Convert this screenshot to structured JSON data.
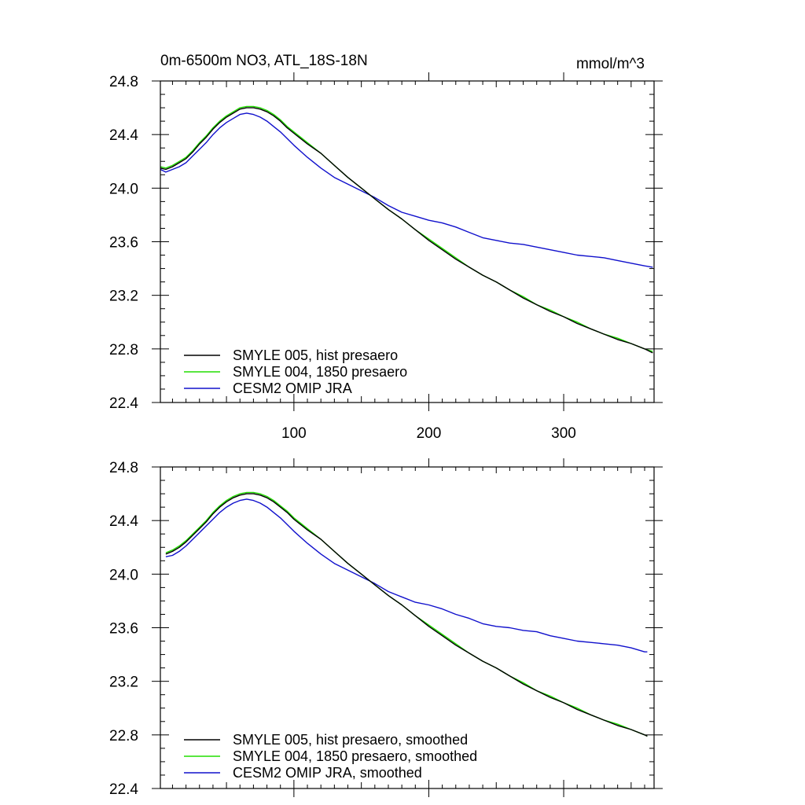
{
  "chart_data": [
    {
      "type": "line",
      "title": "0m-6500m NO3, ATL_18S-18N",
      "units": "mmol/m^3",
      "xlim": [
        1,
        367
      ],
      "ylim": [
        22.4,
        24.8
      ],
      "xticks": [
        100,
        200,
        300
      ],
      "yticks": [
        22.4,
        22.8,
        23.2,
        23.6,
        24.0,
        24.4,
        24.8
      ],
      "ytick_labels": [
        "22.4",
        "22.8",
        "23.2",
        "23.6",
        "24.0",
        "24.4",
        "24.8"
      ],
      "show_xtick_labels": true,
      "legend_position": "bottom-left",
      "grid": false,
      "series": [
        {
          "name": "SMYLE 005, hist presaero",
          "color": "#000000",
          "x": [
            1,
            5,
            10,
            15,
            20,
            25,
            30,
            35,
            40,
            45,
            50,
            55,
            60,
            65,
            70,
            75,
            80,
            85,
            90,
            95,
            100,
            110,
            120,
            130,
            140,
            150,
            160,
            170,
            180,
            190,
            200,
            210,
            220,
            230,
            240,
            250,
            260,
            270,
            280,
            290,
            300,
            310,
            320,
            330,
            340,
            350,
            360,
            366
          ],
          "y": [
            24.15,
            24.14,
            24.16,
            24.19,
            24.22,
            24.27,
            24.33,
            24.38,
            24.44,
            24.49,
            24.53,
            24.56,
            24.59,
            24.6,
            24.6,
            24.59,
            24.57,
            24.54,
            24.5,
            24.45,
            24.41,
            24.33,
            24.26,
            24.17,
            24.08,
            24.0,
            23.92,
            23.84,
            23.77,
            23.69,
            23.61,
            23.54,
            23.47,
            23.41,
            23.35,
            23.3,
            23.24,
            23.18,
            23.13,
            23.08,
            23.04,
            22.99,
            22.95,
            22.91,
            22.87,
            22.84,
            22.8,
            22.77
          ]
        },
        {
          "name": "SMYLE 004, 1850 presaero",
          "color": "#22dd00",
          "x": [
            1,
            5,
            10,
            15,
            20,
            25,
            30,
            35,
            40,
            45,
            50,
            55,
            60,
            65,
            70,
            75,
            80,
            85,
            90,
            95,
            100,
            110,
            120,
            130,
            140,
            150,
            160,
            170,
            180,
            190,
            200,
            210,
            220,
            230,
            240,
            250,
            260,
            270,
            280,
            290,
            300,
            310,
            320,
            330,
            340,
            350,
            360,
            366
          ],
          "y": [
            24.16,
            24.15,
            24.17,
            24.2,
            24.23,
            24.28,
            24.34,
            24.39,
            24.45,
            24.5,
            24.54,
            24.57,
            24.6,
            24.61,
            24.61,
            24.6,
            24.58,
            24.55,
            24.51,
            24.46,
            24.42,
            24.34,
            24.26,
            24.17,
            24.08,
            24.0,
            23.92,
            23.84,
            23.77,
            23.69,
            23.62,
            23.55,
            23.48,
            23.41,
            23.35,
            23.3,
            23.24,
            23.19,
            23.13,
            23.09,
            23.04,
            23.0,
            22.95,
            22.91,
            22.88,
            22.84,
            22.8,
            22.78
          ]
        },
        {
          "name": "CESM2 OMIP JRA",
          "color": "#1010cc",
          "x": [
            1,
            5,
            10,
            15,
            20,
            25,
            30,
            35,
            40,
            45,
            50,
            55,
            60,
            65,
            70,
            75,
            80,
            85,
            90,
            95,
            100,
            110,
            120,
            130,
            140,
            150,
            160,
            170,
            180,
            190,
            200,
            210,
            220,
            230,
            240,
            250,
            260,
            270,
            280,
            290,
            300,
            310,
            320,
            330,
            340,
            350,
            360,
            366
          ],
          "y": [
            24.14,
            24.12,
            24.14,
            24.16,
            24.19,
            24.24,
            24.29,
            24.34,
            24.4,
            24.45,
            24.49,
            24.52,
            24.55,
            24.56,
            24.55,
            24.53,
            24.5,
            24.46,
            24.42,
            24.37,
            24.32,
            24.23,
            24.15,
            24.08,
            24.03,
            23.98,
            23.93,
            23.87,
            23.82,
            23.79,
            23.76,
            23.74,
            23.71,
            23.67,
            23.63,
            23.61,
            23.59,
            23.58,
            23.56,
            23.54,
            23.52,
            23.5,
            23.49,
            23.48,
            23.46,
            23.44,
            23.42,
            23.41
          ]
        }
      ]
    },
    {
      "type": "line",
      "title": "",
      "units": "",
      "xlim": [
        1,
        367
      ],
      "ylim": [
        22.4,
        24.8
      ],
      "xticks": [
        100,
        200,
        300
      ],
      "yticks": [
        22.4,
        22.8,
        23.2,
        23.6,
        24.0,
        24.4,
        24.8
      ],
      "ytick_labels": [
        "22.4",
        "22.8",
        "23.2",
        "23.6",
        "24.0",
        "24.4",
        "24.8"
      ],
      "show_xtick_labels": false,
      "legend_position": "bottom-left",
      "grid": false,
      "series": [
        {
          "name": "SMYLE 005, hist presaero, smoothed",
          "color": "#000000",
          "x": [
            5,
            10,
            15,
            20,
            25,
            30,
            35,
            40,
            45,
            50,
            55,
            60,
            65,
            70,
            75,
            80,
            85,
            90,
            95,
            100,
            110,
            120,
            130,
            140,
            150,
            160,
            170,
            180,
            190,
            200,
            210,
            220,
            230,
            240,
            250,
            260,
            270,
            280,
            290,
            300,
            310,
            320,
            330,
            340,
            350,
            360,
            362
          ],
          "y": [
            24.15,
            24.17,
            24.2,
            24.24,
            24.29,
            24.34,
            24.39,
            24.45,
            24.5,
            24.54,
            24.57,
            24.59,
            24.6,
            24.6,
            24.59,
            24.57,
            24.54,
            24.5,
            24.46,
            24.41,
            24.33,
            24.26,
            24.17,
            24.08,
            24.0,
            23.92,
            23.84,
            23.77,
            23.69,
            23.61,
            23.54,
            23.47,
            23.41,
            23.35,
            23.3,
            23.24,
            23.18,
            23.13,
            23.08,
            23.04,
            22.99,
            22.95,
            22.91,
            22.87,
            22.84,
            22.8,
            22.79
          ]
        },
        {
          "name": "SMYLE 004, 1850 presaero, smoothed",
          "color": "#22dd00",
          "x": [
            5,
            10,
            15,
            20,
            25,
            30,
            35,
            40,
            45,
            50,
            55,
            60,
            65,
            70,
            75,
            80,
            85,
            90,
            95,
            100,
            110,
            120,
            130,
            140,
            150,
            160,
            170,
            180,
            190,
            200,
            210,
            220,
            230,
            240,
            250,
            260,
            270,
            280,
            290,
            300,
            310,
            320,
            330,
            340,
            350,
            360,
            362
          ],
          "y": [
            24.16,
            24.18,
            24.21,
            24.25,
            24.3,
            24.35,
            24.4,
            24.46,
            24.51,
            24.55,
            24.58,
            24.6,
            24.61,
            24.61,
            24.6,
            24.58,
            24.55,
            24.51,
            24.47,
            24.42,
            24.34,
            24.26,
            24.17,
            24.08,
            24.0,
            23.92,
            23.84,
            23.77,
            23.69,
            23.62,
            23.55,
            23.48,
            23.41,
            23.35,
            23.3,
            23.24,
            23.19,
            23.13,
            23.09,
            23.04,
            23.0,
            22.95,
            22.91,
            22.88,
            22.84,
            22.8,
            22.79
          ]
        },
        {
          "name": "CESM2 OMIP JRA, smoothed",
          "color": "#1010cc",
          "x": [
            5,
            10,
            15,
            20,
            25,
            30,
            35,
            40,
            45,
            50,
            55,
            60,
            65,
            70,
            75,
            80,
            85,
            90,
            95,
            100,
            110,
            120,
            130,
            140,
            150,
            160,
            170,
            180,
            190,
            200,
            210,
            220,
            230,
            240,
            250,
            260,
            270,
            280,
            290,
            300,
            310,
            320,
            330,
            340,
            350,
            360,
            362
          ],
          "y": [
            24.13,
            24.14,
            24.17,
            24.21,
            24.26,
            24.31,
            24.36,
            24.41,
            24.46,
            24.5,
            24.53,
            24.55,
            24.56,
            24.55,
            24.53,
            24.5,
            24.46,
            24.42,
            24.37,
            24.32,
            24.23,
            24.15,
            24.08,
            24.03,
            23.98,
            23.93,
            23.87,
            23.83,
            23.79,
            23.77,
            23.74,
            23.7,
            23.67,
            23.63,
            23.61,
            23.6,
            23.58,
            23.57,
            23.54,
            23.52,
            23.5,
            23.49,
            23.48,
            23.47,
            23.45,
            23.42,
            23.42
          ]
        }
      ]
    }
  ]
}
